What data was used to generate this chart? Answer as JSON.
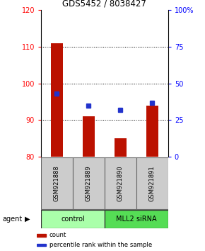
{
  "title": "GDS5452 / 8038427",
  "samples": [
    "GSM921888",
    "GSM921889",
    "GSM921890",
    "GSM921891"
  ],
  "count_values": [
    111,
    91,
    85,
    94
  ],
  "percentile_values": [
    43,
    35,
    32,
    37
  ],
  "ylim_left": [
    80,
    120
  ],
  "ylim_right": [
    0,
    100
  ],
  "yticks_left": [
    80,
    90,
    100,
    110,
    120
  ],
  "yticks_right": [
    0,
    25,
    50,
    75,
    100
  ],
  "yticklabels_right": [
    "0",
    "25",
    "50",
    "75",
    "100%"
  ],
  "bar_color": "#bb1100",
  "dot_color": "#2233cc",
  "bar_bottom": 80,
  "groups": [
    {
      "label": "control",
      "samples": [
        0,
        1
      ],
      "color": "#aaffaa"
    },
    {
      "label": "MLL2 siRNA",
      "samples": [
        2,
        3
      ],
      "color": "#55dd55"
    }
  ],
  "xlabel_row_bg": "#cccccc",
  "legend_items": [
    {
      "label": "count",
      "color": "#bb1100"
    },
    {
      "label": "percentile rank within the sample",
      "color": "#2233cc"
    }
  ],
  "agent_label": "agent",
  "fig_width": 2.9,
  "fig_height": 3.54
}
